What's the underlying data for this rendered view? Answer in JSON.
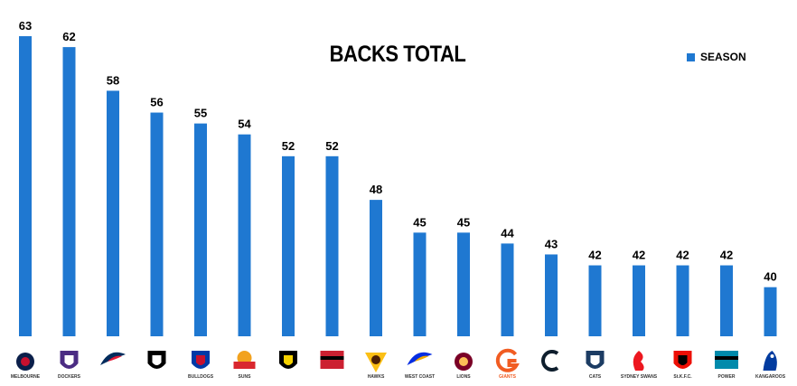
{
  "chart_data": {
    "type": "bar",
    "title": "BACKS TOTAL",
    "xlabel": "",
    "ylabel": "",
    "categories": [
      "Melbourne",
      "Fremantle Dockers",
      "Adelaide Crows",
      "Collingwood",
      "Western Bulldogs",
      "Gold Coast Suns",
      "Richmond",
      "Essendon",
      "Hawthorn Hawks",
      "West Coast Eagles",
      "Brisbane Lions",
      "GWS Giants",
      "Carlton",
      "Geelong Cats",
      "Sydney Swans",
      "St Kilda",
      "Port Adelaide Power",
      "North Melbourne Kangaroos"
    ],
    "series": [
      {
        "name": "SEASON",
        "values": [
          63,
          62,
          58,
          56,
          55,
          54,
          52,
          52,
          48,
          45,
          45,
          44,
          43,
          42,
          42,
          42,
          42,
          40
        ]
      }
    ],
    "ylim": [
      35.5,
      63.5
    ],
    "grid": false,
    "legend": "top-right",
    "colors": {
      "bar": "#1f78d1",
      "label": "#000000"
    }
  },
  "logo_text": {
    "Melbourne": "MELBOURNE",
    "Fremantle Dockers": "DOCKERS",
    "Adelaide Crows": "",
    "Collingwood": "",
    "Western Bulldogs": "BULLDOGS",
    "Gold Coast Suns": "SUNS",
    "Richmond": "",
    "Essendon": "",
    "Hawthorn Hawks": "HAWKS",
    "West Coast Eagles": "WEST COAST",
    "Brisbane Lions": "LIONS",
    "GWS Giants": "GIANTS",
    "Carlton": "",
    "Geelong Cats": "CATS",
    "Sydney Swans": "SYDNEY SWANS",
    "St Kilda": "St.K.F.C.",
    "Port Adelaide Power": "POWER",
    "North Melbourne Kangaroos": "KANGAROOS"
  }
}
